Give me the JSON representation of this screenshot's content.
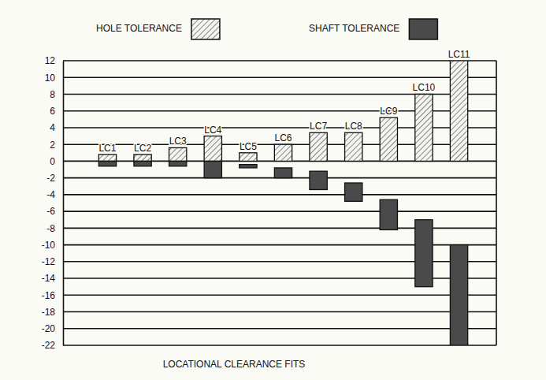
{
  "chart_data": {
    "type": "floating_bar",
    "title": "LOCATIONAL CLEARANCE FITS",
    "categories": [
      "LC1",
      "LC2",
      "LC3",
      "LC4",
      "LC5",
      "LC6",
      "LC7",
      "LC8",
      "LC9",
      "LC10",
      "LC11"
    ],
    "series": [
      {
        "name": "HOLE TOLERANCE",
        "color": "#555555",
        "line_style": "hatched",
        "low": [
          0,
          0,
          0,
          0,
          0,
          0,
          0,
          0,
          0,
          0,
          0
        ],
        "high": [
          0.8,
          0.8,
          1.6,
          3.0,
          1.0,
          2.0,
          3.4,
          3.4,
          5.2,
          8.0,
          12.0
        ]
      },
      {
        "name": "SHAFT TOLERANCE",
        "color": "#4a4a4a",
        "line_style": "solid",
        "low": [
          -0.6,
          -0.6,
          -0.6,
          -2.0,
          -0.8,
          -2.0,
          -3.4,
          -4.8,
          -8.2,
          -15.0,
          -22.0
        ],
        "high": [
          0,
          0,
          0,
          0,
          -0.4,
          -0.8,
          -1.2,
          -2.6,
          -4.6,
          -7.0,
          -10.0
        ]
      }
    ],
    "ylim": [
      -22,
      12
    ],
    "yticks": [
      -22,
      -20,
      -18,
      -16,
      -14,
      -12,
      -10,
      -8,
      -6,
      -4,
      -2,
      0,
      2,
      4,
      6,
      8,
      10,
      12
    ],
    "grid": true,
    "legend": "top",
    "tick_labels": "y"
  }
}
